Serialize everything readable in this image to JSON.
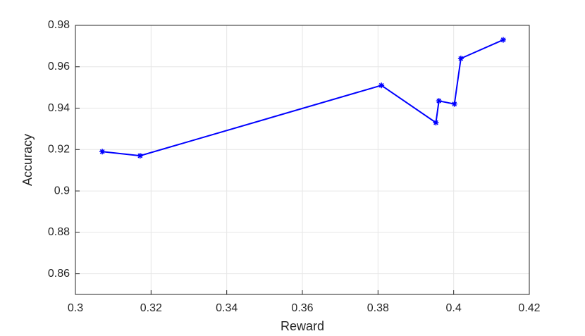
{
  "chart_data": {
    "type": "line",
    "x_label": "Reward",
    "y_label": "Accuracy",
    "series": [
      {
        "name": "Accuracy",
        "color": "#0000ff",
        "x": [
          0.3071,
          0.3171,
          0.3809,
          0.3953,
          0.3961,
          0.4002,
          0.4019,
          0.4131
        ],
        "values": [
          0.919,
          0.917,
          0.951,
          0.933,
          0.9435,
          0.942,
          0.964,
          0.973
        ]
      }
    ],
    "xlim": [
      0.3,
      0.42
    ],
    "xticks": [
      0.3,
      0.32,
      0.34,
      0.36,
      0.38,
      0.4,
      0.42
    ],
    "ylim": [
      0.85,
      0.98
    ],
    "yticks": [
      0.86,
      0.88,
      0.9,
      0.92,
      0.94,
      0.96,
      0.98
    ],
    "grid": true,
    "marker": "asterisk"
  }
}
